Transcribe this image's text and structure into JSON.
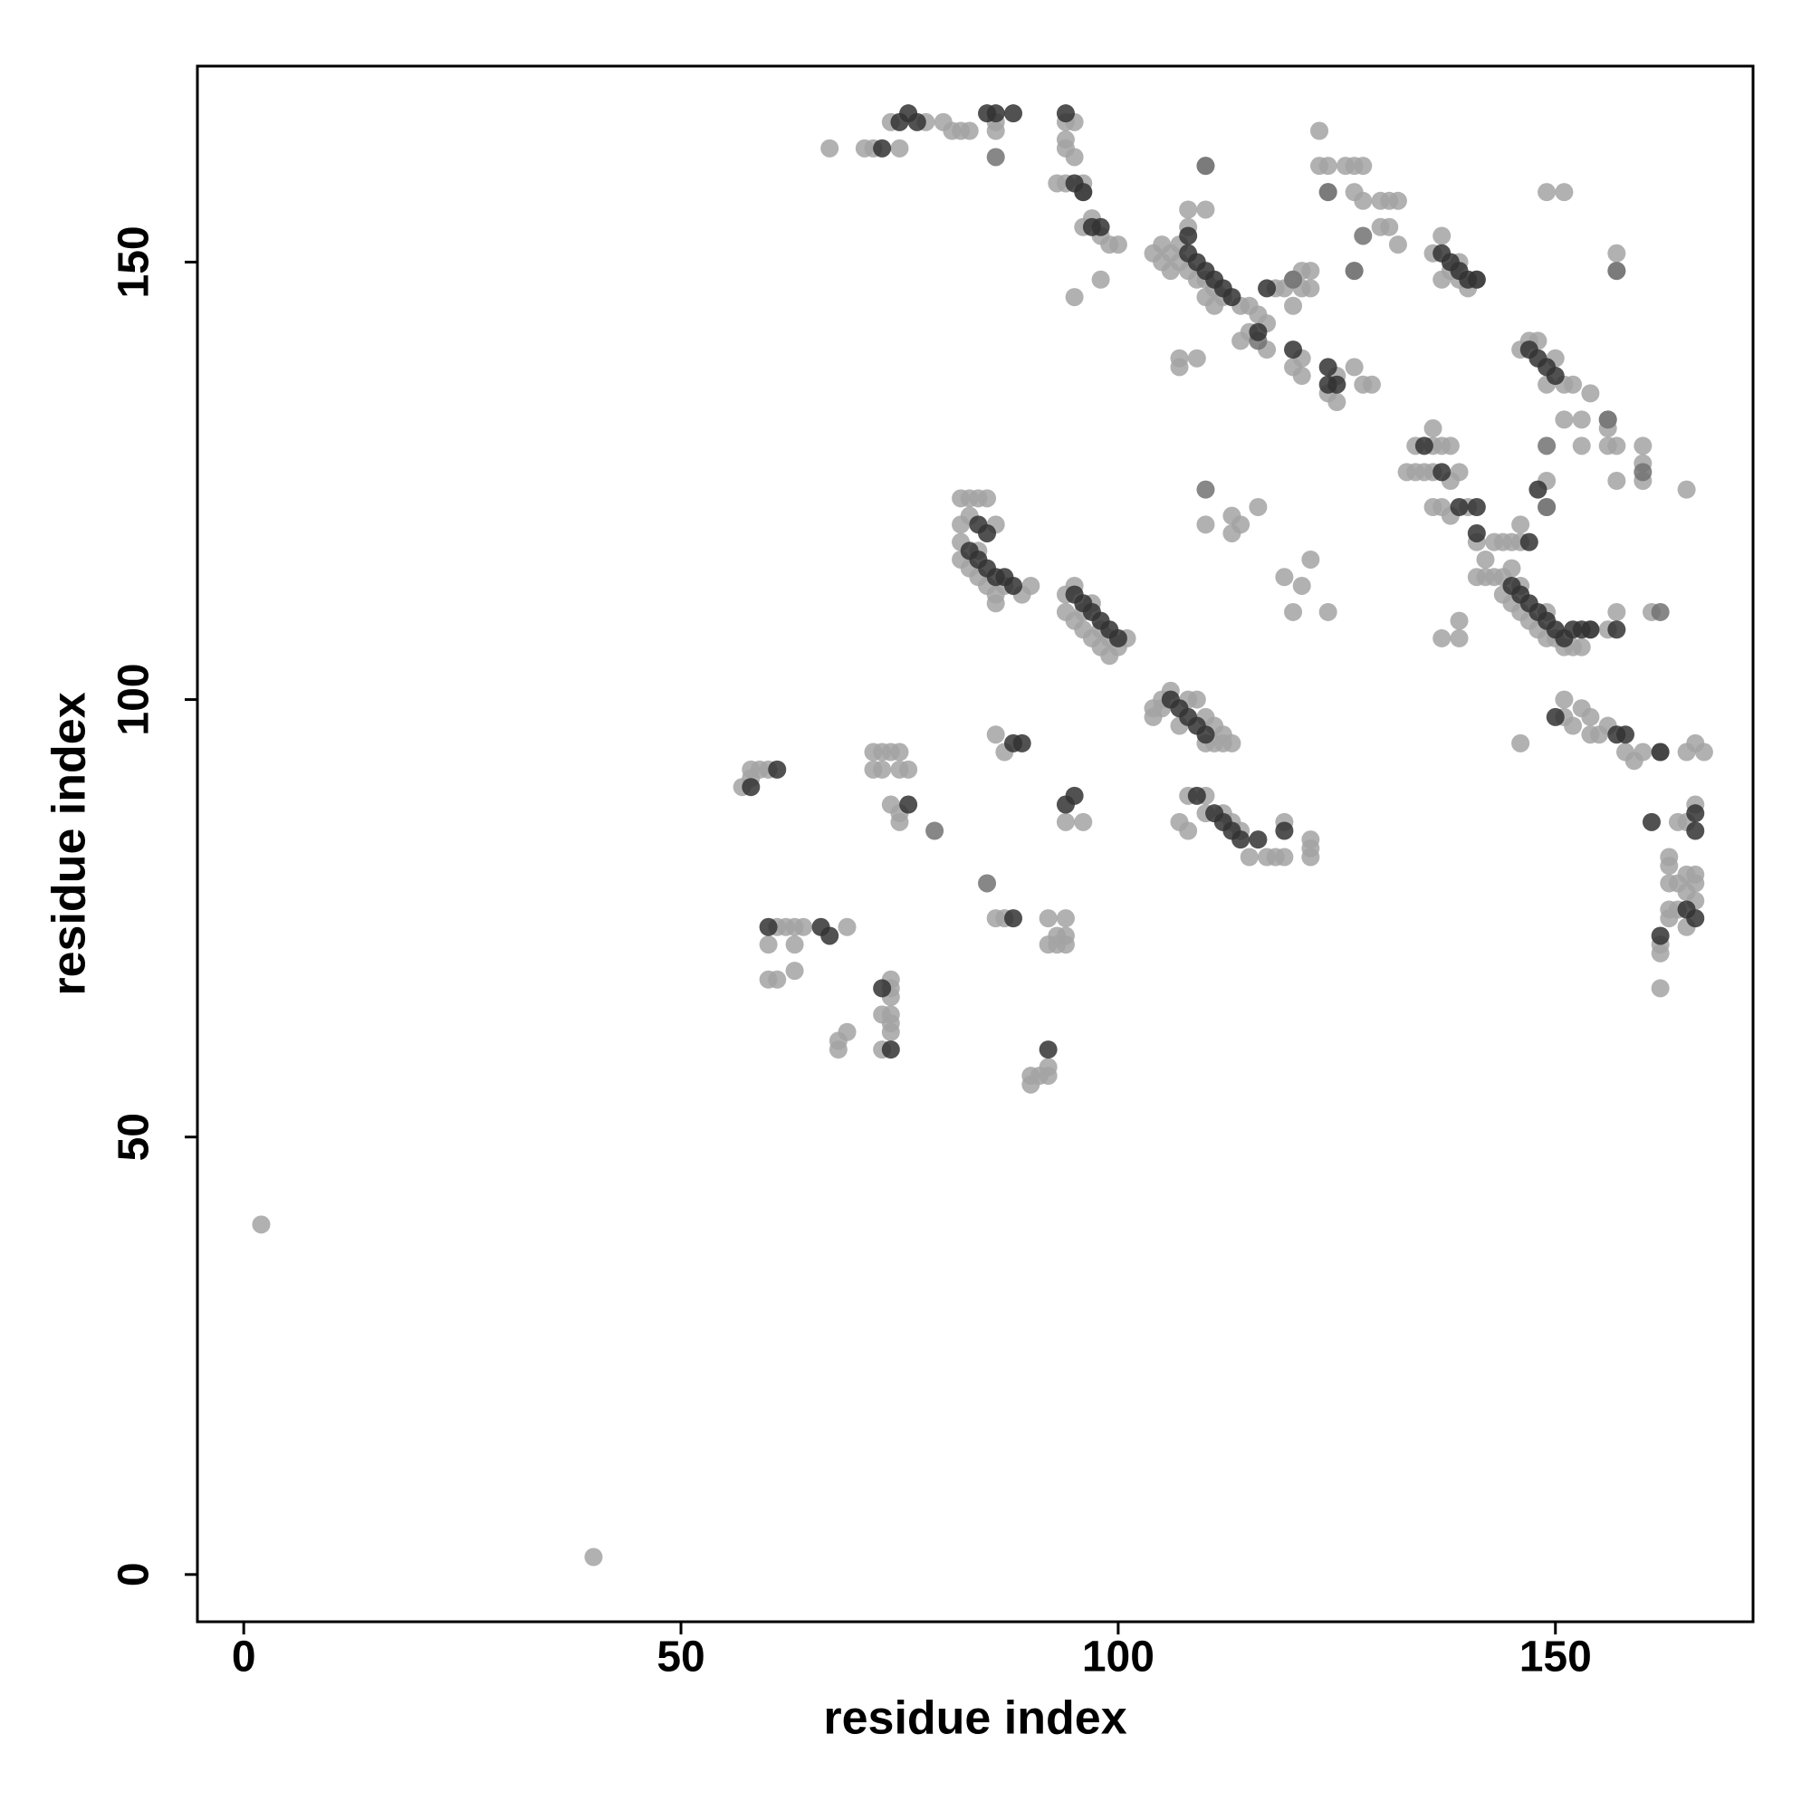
{
  "chart_data": {
    "type": "scatter",
    "xlabel": "residue index",
    "ylabel": "residue index",
    "xlim": [
      -5.3,
      172.6
    ],
    "ylim": [
      -5.4,
      172.4
    ],
    "xticks": [
      0,
      50,
      100,
      150
    ],
    "yticks": [
      0,
      50,
      100,
      150
    ],
    "grid": false,
    "series": [
      {
        "color": "#a3a3a3",
        "x": [
          2,
          40,
          67,
          71,
          72,
          75,
          74,
          78,
          80,
          81,
          82,
          83,
          86,
          86,
          94,
          95,
          94,
          94,
          95,
          93,
          94,
          96,
          96,
          97,
          96,
          98,
          99,
          100,
          98,
          95,
          104,
          105,
          105,
          106,
          106,
          107,
          107,
          108,
          108,
          109,
          110,
          110,
          111,
          111,
          112,
          114,
          115,
          116,
          117,
          118,
          119,
          120,
          108,
          110,
          110,
          107,
          107,
          109,
          114,
          115,
          117,
          121,
          120,
          121,
          125,
          124,
          125,
          127,
          128,
          129,
          123,
          123,
          124,
          126,
          127,
          128,
          124,
          127,
          128,
          130,
          131,
          132,
          130,
          131,
          132,
          121,
          122,
          127,
          120,
          121,
          122,
          136,
          137,
          138,
          139,
          139,
          140,
          141,
          137,
          149,
          151,
          157,
          157,
          146,
          147,
          148,
          149,
          150,
          151,
          152,
          154,
          151,
          153,
          156,
          156,
          156,
          157,
          153,
          160,
          160,
          160,
          157,
          165,
          149,
          149,
          134,
          136,
          136,
          137,
          138,
          133,
          134,
          135,
          136,
          138,
          139,
          136,
          137,
          138,
          140,
          141,
          143,
          142,
          141,
          142,
          143,
          144,
          145,
          146,
          146,
          137,
          139,
          139,
          144,
          144,
          145,
          145,
          146,
          146,
          147,
          148,
          149,
          149,
          150,
          151,
          152,
          153,
          154,
          156,
          157,
          161,
          146,
          151,
          151,
          152,
          153,
          154,
          154,
          155,
          156,
          158,
          159,
          160,
          162,
          165,
          166,
          167,
          164,
          165,
          166,
          163,
          163,
          163,
          164,
          165,
          165,
          166,
          166,
          163,
          163,
          164,
          165,
          162,
          162,
          162,
          166,
          104,
          104,
          105,
          105,
          106,
          107,
          108,
          109,
          110,
          110,
          111,
          111,
          112,
          112,
          113,
          108,
          110,
          110,
          112,
          113,
          114,
          115,
          117,
          118,
          119,
          119,
          122,
          122,
          122,
          107,
          108,
          82,
          83,
          84,
          85,
          82,
          82,
          82,
          83,
          83,
          84,
          84,
          85,
          86,
          86,
          86,
          87,
          89,
          90,
          94,
          94,
          95,
          95,
          96,
          96,
          97,
          97,
          98,
          98,
          99,
          99,
          100,
          101,
          86,
          87,
          94,
          96,
          110,
          113,
          113,
          114,
          116,
          119,
          121,
          122,
          120,
          124,
          57,
          58,
          58,
          59,
          60,
          72,
          73,
          74,
          75,
          72,
          73,
          75,
          76,
          74,
          75,
          75,
          86,
          87,
          92,
          93,
          92,
          93,
          94,
          94,
          94,
          61,
          62,
          63,
          64,
          60,
          63,
          69,
          60,
          61,
          63,
          74,
          74,
          74,
          73,
          74,
          74,
          74,
          73,
          69,
          68,
          68,
          90,
          90,
          91,
          92,
          92
        ],
        "values": [
          40,
          2,
          163,
          163,
          163,
          163,
          166,
          166,
          166,
          165,
          165,
          165,
          166,
          165,
          166,
          166,
          164,
          163,
          162,
          159,
          159,
          159,
          158,
          155,
          154,
          153,
          152,
          152,
          148,
          146,
          151,
          152,
          150,
          151,
          149,
          152,
          150,
          154,
          149,
          148,
          148,
          146,
          147,
          145,
          146,
          145,
          145,
          144,
          143,
          147,
          147,
          145,
          156,
          156,
          161,
          139,
          138,
          139,
          141,
          142,
          140,
          139,
          138,
          137,
          137,
          135,
          134,
          138,
          136,
          136,
          165,
          161,
          161,
          161,
          161,
          161,
          158,
          158,
          157,
          157,
          157,
          157,
          154,
          154,
          152,
          149,
          149,
          149,
          148,
          147,
          147,
          151,
          153,
          149,
          150,
          148,
          147,
          148,
          148,
          158,
          158,
          151,
          149,
          140,
          141,
          141,
          136,
          139,
          136,
          136,
          135,
          132,
          132,
          132,
          131,
          129,
          129,
          129,
          129,
          127,
          125,
          125,
          124,
          125,
          122,
          129,
          131,
          129,
          129,
          129,
          126,
          126,
          126,
          126,
          125,
          126,
          122,
          122,
          121,
          122,
          118,
          118,
          116,
          114,
          114,
          114,
          118,
          118,
          118,
          120,
          107,
          107,
          109,
          114,
          112,
          115,
          111,
          113,
          110,
          109,
          108,
          110,
          107,
          107,
          106,
          106,
          106,
          108,
          108,
          110,
          110,
          95,
          100,
          98,
          97,
          99,
          98,
          96,
          96,
          97,
          94,
          93,
          94,
          94,
          94,
          95,
          94,
          86,
          86,
          88,
          82,
          81,
          79,
          79,
          80,
          78,
          80,
          77,
          76,
          75,
          76,
          74,
          72,
          71,
          67,
          79,
          99,
          98,
          100,
          99,
          101,
          97,
          100,
          100,
          98,
          95,
          97,
          95,
          96,
          95,
          95,
          89,
          89,
          87,
          87,
          86,
          85,
          82,
          82,
          82,
          86,
          82,
          84,
          83,
          82,
          86,
          85,
          123,
          123,
          123,
          123,
          120,
          118,
          116,
          121,
          115,
          117,
          114,
          113,
          120,
          112,
          111,
          113,
          112,
          113,
          112,
          110,
          113,
          109,
          110,
          108,
          111,
          107,
          108,
          106,
          107,
          105,
          106,
          107,
          96,
          94,
          86,
          86,
          120,
          121,
          119,
          120,
          122,
          114,
          113,
          116,
          110,
          110,
          90,
          91,
          92,
          92,
          92,
          94,
          94,
          94,
          94,
          92,
          92,
          92,
          92,
          88,
          86,
          87,
          75,
          75,
          75,
          73,
          72,
          72,
          72,
          75,
          73,
          74,
          74,
          74,
          74,
          72,
          72,
          74,
          68,
          68,
          69,
          67,
          68,
          66,
          64,
          64,
          63,
          62,
          60,
          62,
          61,
          60,
          57,
          56,
          57,
          57,
          58
        ]
      },
      {
        "color": "#727272",
        "x": [
          85,
          79,
          110,
          110,
          86,
          120,
          124,
          127,
          116,
          157,
          149,
          160,
          149,
          162,
          156,
          128
        ],
        "values": [
          79,
          85,
          124,
          161,
          162,
          148,
          158,
          149,
          141,
          149,
          129,
          126,
          122,
          110,
          132,
          153
        ]
      },
      {
        "color": "#333333",
        "x": [
          73,
          76,
          75,
          77,
          85,
          86,
          88,
          94,
          95,
          96,
          97,
          98,
          108,
          108,
          109,
          110,
          111,
          112,
          113,
          117,
          116,
          120,
          124,
          124,
          125,
          137,
          138,
          139,
          140,
          141,
          147,
          148,
          149,
          150,
          135,
          137,
          139,
          141,
          141,
          147,
          148,
          145,
          146,
          147,
          148,
          149,
          150,
          151,
          152,
          153,
          154,
          157,
          150,
          157,
          158,
          162,
          166,
          166,
          165,
          166,
          162,
          161,
          106,
          107,
          108,
          109,
          110,
          109,
          111,
          112,
          113,
          114,
          116,
          119,
          83,
          84,
          85,
          86,
          87,
          88,
          84,
          85,
          95,
          96,
          97,
          98,
          99,
          100,
          88,
          89,
          95,
          94,
          61,
          58,
          76,
          60,
          66,
          67,
          73,
          74,
          92,
          88
        ],
        "values": [
          163,
          167,
          166,
          166,
          167,
          167,
          167,
          167,
          159,
          158,
          154,
          154,
          153,
          151,
          150,
          149,
          148,
          147,
          146,
          147,
          142,
          140,
          138,
          136,
          136,
          151,
          150,
          149,
          148,
          148,
          140,
          139,
          138,
          137,
          129,
          126,
          122,
          122,
          119,
          118,
          124,
          113,
          112,
          111,
          110,
          109,
          108,
          107,
          108,
          108,
          108,
          108,
          98,
          96,
          96,
          94,
          87,
          85,
          76,
          75,
          73,
          86,
          100,
          99,
          98,
          97,
          96,
          89,
          87,
          86,
          85,
          84,
          84,
          85,
          117,
          116,
          115,
          114,
          114,
          113,
          120,
          119,
          112,
          111,
          110,
          109,
          108,
          107,
          95,
          95,
          89,
          88,
          92,
          90,
          88,
          74,
          74,
          73,
          67,
          60,
          60,
          75
        ]
      }
    ]
  }
}
